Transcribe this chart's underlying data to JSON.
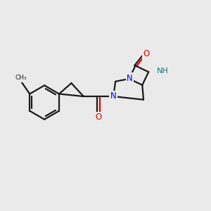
{
  "background_color": "#eaeaea",
  "bond_color": "#1a1a1a",
  "bond_width": 1.6,
  "N_color": "#0000ee",
  "O_color": "#ee0000",
  "NH_color": "#008080",
  "figsize": [
    3.0,
    3.0
  ],
  "dpi": 100,
  "xlim": [
    0,
    10
  ],
  "ylim": [
    1,
    9
  ]
}
